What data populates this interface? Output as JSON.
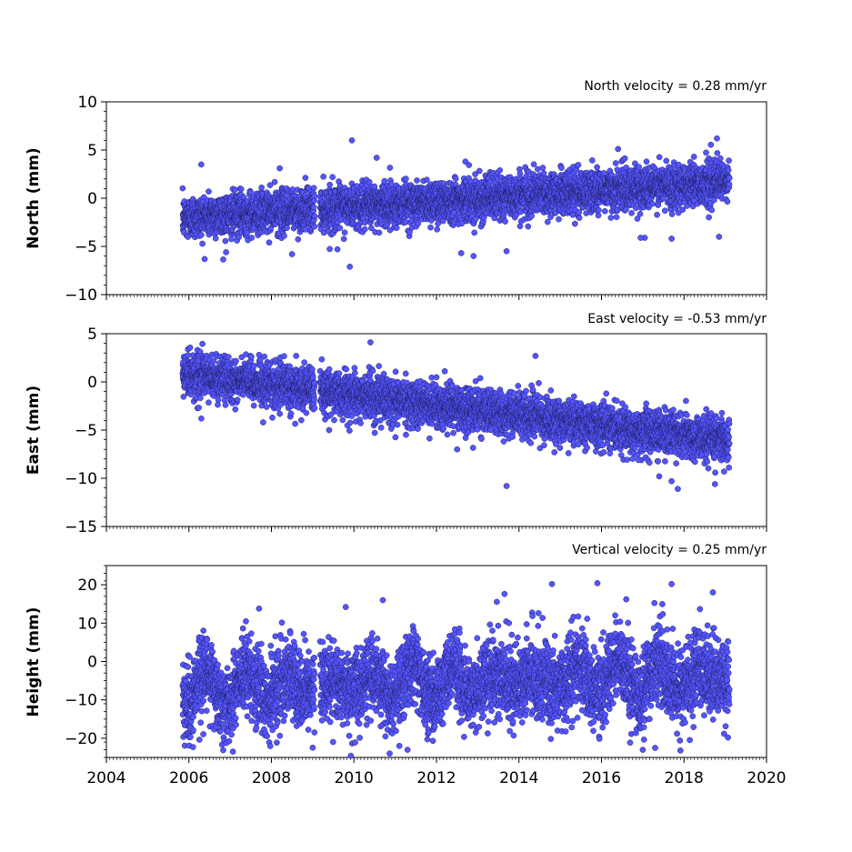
{
  "colors": {
    "marker_fill": "#5555ff",
    "marker_edge": "#1a1a55",
    "axis": "#000000"
  },
  "chart_data": [
    {
      "type": "scatter",
      "title": "North velocity = 0.28 mm/yr",
      "ylabel": "North (mm)",
      "xlim": [
        2004,
        2020
      ],
      "ylim": [
        -10,
        10
      ],
      "yticks": [
        -10,
        -5,
        0,
        5,
        10
      ],
      "xtick_labels_shown": false,
      "series": [
        {
          "time_range": [
            2005.85,
            2019.1
          ],
          "velocity_mm_per_yr": 0.28,
          "value_at_2012": -0.3,
          "scatter_std_mm": 1.1,
          "outliers": [
            [
              2009.9,
              -7.1
            ],
            [
              2009.95,
              6.0
            ],
            [
              2010.55,
              4.2
            ],
            [
              2006.9,
              -5.6
            ],
            [
              2008.5,
              -5.8
            ],
            [
              2012.6,
              -5.7
            ],
            [
              2012.9,
              -6.0
            ],
            [
              2013.7,
              -5.5
            ],
            [
              2017.05,
              -4.1
            ],
            [
              2018.85,
              -4.0
            ],
            [
              2018.8,
              6.2
            ],
            [
              2016.4,
              5.1
            ],
            [
              2016.95,
              -4.1
            ],
            [
              2017.7,
              -4.2
            ],
            [
              2006.3,
              3.5
            ],
            [
              2008.2,
              3.1
            ],
            [
              2012.7,
              3.8
            ],
            [
              2009.6,
              -5.3
            ]
          ]
        }
      ]
    },
    {
      "type": "scatter",
      "title": "East velocity = -0.53 mm/yr",
      "ylabel": "East (mm)",
      "xlim": [
        2004,
        2020
      ],
      "ylim": [
        -15,
        5
      ],
      "yticks": [
        -15,
        -10,
        -5,
        0,
        5
      ],
      "xtick_labels_shown": false,
      "series": [
        {
          "time_range": [
            2005.85,
            2019.1
          ],
          "velocity_mm_per_yr": -0.53,
          "value_at_2012": -2.4,
          "scatter_std_mm": 1.1,
          "outliers": [
            [
              2010.4,
              4.1
            ],
            [
              2013.7,
              -10.8
            ],
            [
              2017.4,
              -9.8
            ],
            [
              2017.7,
              -10.3
            ],
            [
              2017.85,
              -11.1
            ],
            [
              2018.75,
              -10.6
            ],
            [
              2014.4,
              2.7
            ],
            [
              2007.7,
              2.8
            ],
            [
              2008.6,
              2.7
            ],
            [
              2012.2,
              1.1
            ],
            [
              2006.3,
              -3.8
            ],
            [
              2007.8,
              -4.2
            ],
            [
              2009.4,
              -5.0
            ],
            [
              2012.5,
              -7.0
            ],
            [
              2015.2,
              -7.4
            ],
            [
              2016.9,
              -8.1
            ]
          ]
        }
      ]
    },
    {
      "type": "scatter",
      "title": "Vertical velocity = 0.25 mm/yr",
      "ylabel": "Height (mm)",
      "xlim": [
        2004,
        2020
      ],
      "ylim": [
        -25,
        25
      ],
      "yticks": [
        -20,
        -10,
        0,
        10,
        20
      ],
      "xtick_labels": [
        "2004",
        "2006",
        "2008",
        "2010",
        "2012",
        "2014",
        "2016",
        "2018",
        "2020"
      ],
      "series": [
        {
          "time_range": [
            2005.85,
            2019.1
          ],
          "velocity_mm_per_yr": 0.25,
          "value_at_2012": -5.5,
          "scatter_std_mm": 5.0,
          "seasonal_amplitude_mm": 5.0,
          "outliers": [
            [
              2014.8,
              20.2
            ],
            [
              2015.9,
              20.4
            ],
            [
              2017.7,
              20.2
            ],
            [
              2018.7,
              18.0
            ],
            [
              2010.7,
              16.0
            ],
            [
              2009.8,
              14.2
            ],
            [
              2006.1,
              -22.3
            ],
            [
              2011.1,
              -22.0
            ],
            [
              2011.3,
              -23.0
            ],
            [
              2017.0,
              -23.0
            ],
            [
              2017.3,
              -22.5
            ],
            [
              2013.65,
              17.6
            ],
            [
              2016.6,
              16.2
            ],
            [
              2007.7,
              13.8
            ]
          ]
        }
      ]
    }
  ]
}
